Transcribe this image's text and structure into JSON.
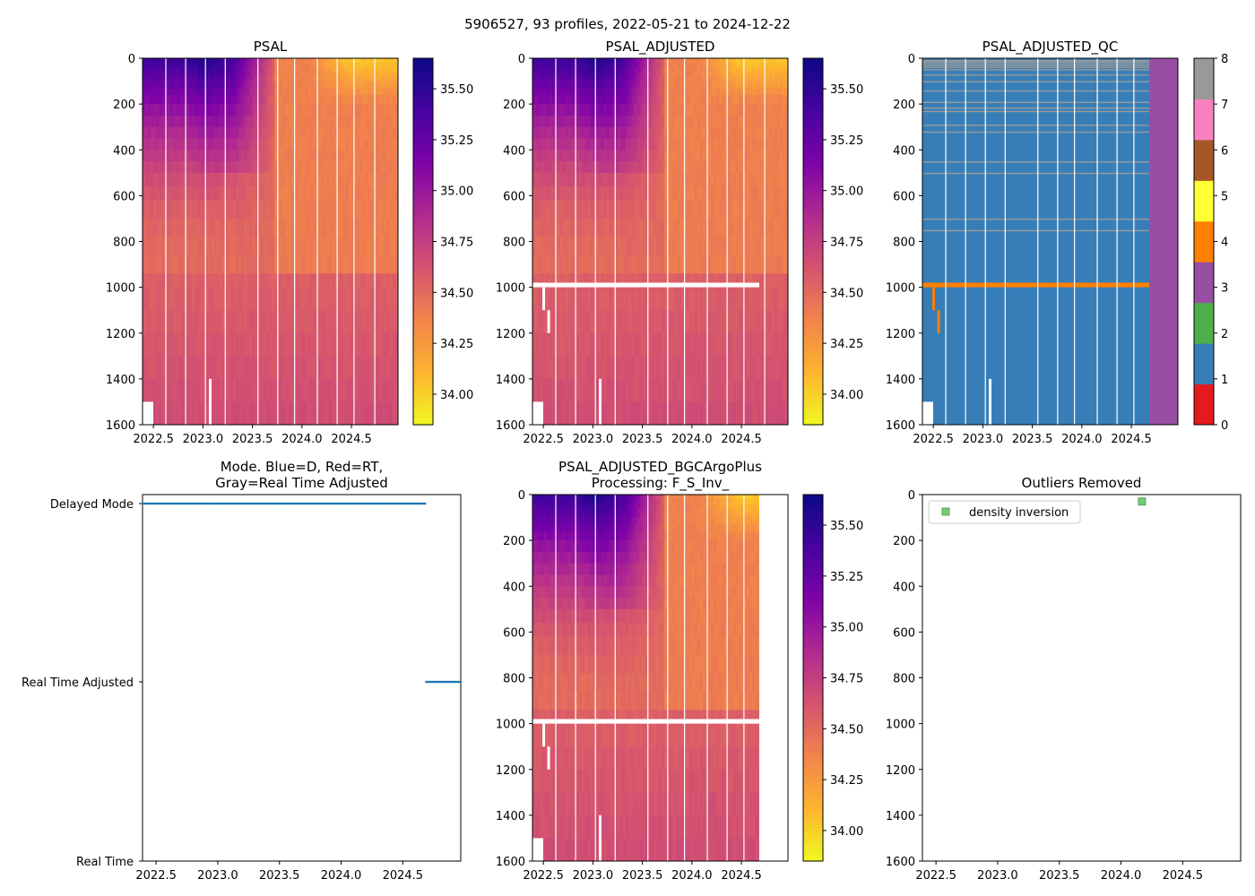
{
  "figure": {
    "suptitle": "5906527, 93 profiles, 2022-05-21 to 2024-12-22"
  },
  "colors": {
    "psal_stops": [
      "#f0f921",
      "#fdb42f",
      "#f2844b",
      "#d5546e",
      "#b12a90",
      "#7e03a8",
      "#47039f",
      "#0d0887"
    ],
    "qc": {
      "0": "#e41a1c",
      "1": "#377eb8",
      "2": "#4daf4a",
      "3": "#984ea3",
      "4": "#ff7f00",
      "5": "#ffff33",
      "6": "#a65628",
      "7": "#f781bf",
      "8": "#999999"
    },
    "mode_dots": "#1f77b4",
    "outlier_marker": "#77c877"
  },
  "chart_data": [
    {
      "id": "psal",
      "type": "heatmap",
      "title": "PSAL",
      "x_range": [
        2022.39,
        2024.97
      ],
      "x_ticks": [
        "2022.5",
        "2023.0",
        "2023.5",
        "2024.0",
        "2024.5"
      ],
      "x_tick_values": [
        2022.5,
        2023.0,
        2023.5,
        2024.0,
        2024.5
      ],
      "y_range": [
        0,
        1600
      ],
      "y_ticks": [
        "0",
        "200",
        "400",
        "600",
        "800",
        "1000",
        "1200",
        "1400",
        "1600"
      ],
      "y_tick_values": [
        0,
        200,
        400,
        600,
        800,
        1000,
        1200,
        1400,
        1600
      ],
      "colorbar": {
        "range": [
          33.85,
          35.65
        ],
        "ticks": [
          "34.00",
          "34.25",
          "34.50",
          "34.75",
          "35.00",
          "35.25",
          "35.50"
        ],
        "tick_values": [
          34.0,
          34.25,
          34.5,
          34.75,
          35.0,
          35.25,
          35.5
        ]
      },
      "last_year": 2024.97,
      "gap_1000": false
    },
    {
      "id": "psal-adjusted",
      "type": "heatmap",
      "title": "PSAL_ADJUSTED",
      "x_range": [
        2022.39,
        2024.97
      ],
      "x_ticks": [
        "2022.5",
        "2023.0",
        "2023.5",
        "2024.0",
        "2024.5"
      ],
      "x_tick_values": [
        2022.5,
        2023.0,
        2023.5,
        2024.0,
        2024.5
      ],
      "y_range": [
        0,
        1600
      ],
      "y_ticks": [
        "0",
        "200",
        "400",
        "600",
        "800",
        "1000",
        "1200",
        "1400",
        "1600"
      ],
      "y_tick_values": [
        0,
        200,
        400,
        600,
        800,
        1000,
        1200,
        1400,
        1600
      ],
      "colorbar": {
        "range": [
          33.85,
          35.65
        ],
        "ticks": [
          "34.00",
          "34.25",
          "34.50",
          "34.75",
          "35.00",
          "35.25",
          "35.50"
        ],
        "tick_values": [
          34.0,
          34.25,
          34.5,
          34.75,
          35.0,
          35.25,
          35.5
        ]
      },
      "last_year": 2024.97,
      "gap_1000": true,
      "gap_end_year": 2024.68
    },
    {
      "id": "psal-adjusted-qc",
      "type": "heatmap",
      "title": "PSAL_ADJUSTED_QC",
      "x_range": [
        2022.39,
        2024.97
      ],
      "x_ticks": [
        "2022.5",
        "2023.0",
        "2023.5",
        "2024.0",
        "2024.5"
      ],
      "x_tick_values": [
        2022.5,
        2023.0,
        2023.5,
        2024.0,
        2024.5
      ],
      "y_range": [
        0,
        1600
      ],
      "y_ticks": [
        "0",
        "200",
        "400",
        "600",
        "800",
        "1000",
        "1200",
        "1400",
        "1600"
      ],
      "y_tick_values": [
        0,
        200,
        400,
        600,
        800,
        1000,
        1200,
        1400,
        1600
      ],
      "colorbar": {
        "range": [
          0,
          8
        ],
        "ticks": [
          "0",
          "1",
          "2",
          "3",
          "4",
          "5",
          "6",
          "7",
          "8"
        ],
        "tick_values": [
          0,
          1,
          2,
          3,
          4,
          5,
          6,
          7,
          8
        ]
      },
      "qc_values": {
        "main": 1,
        "last_profiles": 3,
        "level_1000": 4,
        "flagged_lines": 8
      },
      "qc3_start_year": 2024.68,
      "qc4_depth_range": [
        980,
        1000
      ]
    },
    {
      "id": "mode",
      "type": "scatter",
      "title_lines": [
        "Mode. Blue=D, Red=RT,",
        "Gray=Real Time Adjusted"
      ],
      "x_range": [
        2022.39,
        2024.97
      ],
      "x_ticks": [
        "2022.5",
        "2023.0",
        "2023.5",
        "2024.0",
        "2024.5"
      ],
      "x_tick_values": [
        2022.5,
        2023.0,
        2023.5,
        2024.0,
        2024.5
      ],
      "y_categories": [
        "Delayed Mode",
        "Real Time Adjusted",
        "Real Time"
      ],
      "y_category_values": [
        2,
        1,
        0
      ],
      "series": [
        {
          "name": "Delayed Mode",
          "level": 2,
          "x_start": 2022.39,
          "x_end": 2024.68
        },
        {
          "name": "Real Time Adjusted",
          "level": 1,
          "x_start": 2024.69,
          "x_end": 2024.97
        }
      ]
    },
    {
      "id": "psal-bgc",
      "type": "heatmap",
      "title_lines": [
        "PSAL_ADJUSTED_BGCArgoPlus",
        "Processing: F_S_Inv_"
      ],
      "x_range": [
        2022.39,
        2024.97
      ],
      "x_ticks": [
        "2022.5",
        "2023.0",
        "2023.5",
        "2024.0",
        "2024.5"
      ],
      "x_tick_values": [
        2022.5,
        2023.0,
        2023.5,
        2024.0,
        2024.5
      ],
      "y_range": [
        0,
        1600
      ],
      "y_ticks": [
        "0",
        "200",
        "400",
        "600",
        "800",
        "1000",
        "1200",
        "1400",
        "1600"
      ],
      "y_tick_values": [
        0,
        200,
        400,
        600,
        800,
        1000,
        1200,
        1400,
        1600
      ],
      "colorbar": {
        "range": [
          33.85,
          35.65
        ],
        "ticks": [
          "34.00",
          "34.25",
          "34.50",
          "34.75",
          "35.00",
          "35.25",
          "35.50"
        ],
        "tick_values": [
          34.0,
          34.25,
          34.5,
          34.75,
          35.0,
          35.25,
          35.5
        ]
      },
      "last_year": 2024.68,
      "gap_1000": true,
      "gap_end_year": 2024.68
    },
    {
      "id": "outliers",
      "type": "scatter",
      "title": "Outliers Removed",
      "x_range": [
        2022.39,
        2024.97
      ],
      "x_ticks": [
        "2022.5",
        "2023.0",
        "2023.5",
        "2024.0",
        "2024.5"
      ],
      "x_tick_values": [
        2022.5,
        2023.0,
        2023.5,
        2024.0,
        2024.5
      ],
      "y_range": [
        0,
        1600
      ],
      "y_ticks": [
        "0",
        "200",
        "400",
        "600",
        "800",
        "1000",
        "1200",
        "1400",
        "1600"
      ],
      "y_tick_values": [
        0,
        200,
        400,
        600,
        800,
        1000,
        1200,
        1400,
        1600
      ],
      "legend": {
        "label": "density inversion",
        "placement": "top-left"
      },
      "points": [
        {
          "label": "density inversion",
          "x": 2024.17,
          "y": 30
        }
      ]
    }
  ]
}
